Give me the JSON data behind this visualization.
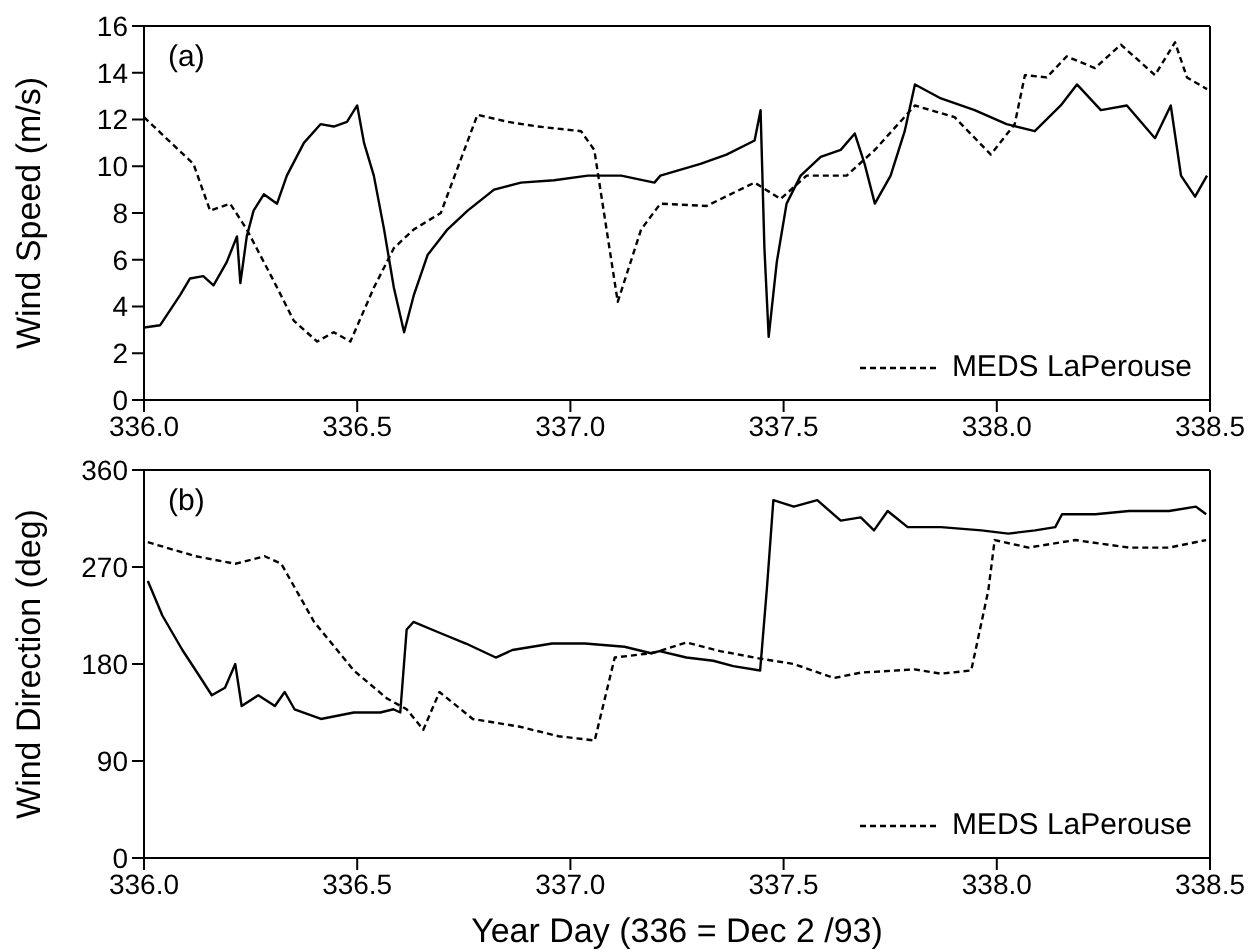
{
  "chart_data": [
    {
      "type": "line",
      "ylabel": "Wind Speed (m/s)",
      "annotations": [
        "(a)"
      ],
      "legend": "bottom right",
      "marker": "none",
      "xlim": [
        336,
        338.5
      ],
      "xticks": [
        {
          "value": 336,
          "label": "336.0"
        },
        {
          "value": 336.5,
          "label": "336.5"
        },
        {
          "value": 337,
          "label": "337.0"
        },
        {
          "value": 337.5,
          "label": "337.5"
        },
        {
          "value": 338,
          "label": "338.0"
        },
        {
          "value": 338.5,
          "label": "338.5"
        }
      ],
      "ylim": [
        0,
        16
      ],
      "yticks": [
        0,
        2,
        4,
        6,
        8,
        10,
        12,
        14,
        16
      ],
      "series": [
        {
          "color": "#000000",
          "line_style": "solid",
          "x": [
            336.0,
            336.038,
            336.085,
            336.108,
            336.139,
            336.163,
            336.194,
            336.218,
            336.226,
            336.241,
            336.257,
            336.281,
            336.312,
            336.335,
            336.375,
            336.414,
            336.445,
            336.476,
            336.5,
            336.516,
            336.539,
            336.563,
            336.586,
            336.61,
            336.633,
            336.665,
            336.712,
            336.759,
            336.821,
            336.884,
            336.962,
            337.041,
            337.119,
            337.197,
            337.211,
            337.305,
            337.366,
            337.432,
            337.446,
            337.455,
            337.465,
            337.484,
            337.507,
            337.54,
            337.587,
            337.634,
            337.667,
            337.69,
            337.714,
            337.751,
            337.784,
            337.808,
            337.869,
            337.948,
            338.023,
            338.089,
            338.15,
            338.188,
            338.244,
            338.305,
            338.371,
            338.408,
            338.432,
            338.465,
            338.493
          ],
          "values": [
            3.1,
            3.2,
            4.5,
            5.2,
            5.3,
            4.9,
            5.9,
            7.0,
            5.0,
            7.0,
            8.1,
            8.8,
            8.4,
            9.6,
            11.0,
            11.8,
            11.7,
            11.9,
            12.6,
            11.0,
            9.6,
            7.3,
            4.8,
            2.9,
            4.5,
            6.2,
            7.3,
            8.1,
            9.0,
            9.3,
            9.4,
            9.6,
            9.6,
            9.3,
            9.6,
            10.1,
            10.5,
            11.1,
            12.4,
            6.5,
            2.7,
            5.9,
            8.4,
            9.6,
            10.4,
            10.7,
            11.4,
            10.1,
            8.4,
            9.6,
            11.5,
            13.5,
            12.9,
            12.4,
            11.8,
            11.5,
            12.6,
            13.5,
            12.4,
            12.6,
            11.2,
            12.6,
            9.6,
            8.7,
            9.6
          ]
        },
        {
          "name": "MEDS LaPerouse",
          "color": "#000000",
          "line_style": "dashed",
          "x": [
            336.0,
            336.116,
            336.155,
            336.202,
            336.241,
            336.304,
            336.351,
            336.406,
            336.445,
            336.484,
            336.539,
            336.586,
            336.633,
            336.696,
            336.782,
            336.853,
            336.923,
            337.025,
            337.056,
            337.111,
            337.166,
            337.211,
            337.319,
            337.432,
            337.493,
            337.554,
            337.648,
            337.714,
            337.808,
            337.901,
            337.986,
            338.042,
            338.066,
            338.117,
            338.164,
            338.23,
            338.291,
            338.371,
            338.418,
            338.446,
            338.493
          ],
          "values": [
            12.1,
            10.1,
            8.1,
            8.4,
            7.3,
            5.1,
            3.4,
            2.5,
            2.9,
            2.5,
            4.8,
            6.5,
            7.3,
            8.0,
            12.2,
            11.9,
            11.7,
            11.5,
            10.7,
            4.2,
            7.3,
            8.4,
            8.3,
            9.3,
            8.6,
            9.6,
            9.6,
            10.7,
            12.6,
            12.1,
            10.5,
            11.8,
            13.9,
            13.8,
            14.7,
            14.2,
            15.2,
            13.9,
            15.3,
            13.8,
            13.3
          ]
        }
      ]
    },
    {
      "type": "line",
      "xlabel": "Year Day (336 = Dec 2 /93)",
      "ylabel": "Wind Direction (deg)",
      "annotations": [
        "(b)"
      ],
      "legend": "bottom right",
      "marker": "none",
      "xlim": [
        336,
        338.5
      ],
      "xticks": [
        {
          "value": 336,
          "label": "336.0"
        },
        {
          "value": 336.5,
          "label": "336.5"
        },
        {
          "value": 337,
          "label": "337.0"
        },
        {
          "value": 337.5,
          "label": "337.5"
        },
        {
          "value": 338,
          "label": "338.0"
        },
        {
          "value": 338.5,
          "label": "338.5"
        }
      ],
      "ylim": [
        0,
        360
      ],
      "yticks": [
        0,
        90,
        180,
        270,
        360
      ],
      "series": [
        {
          "color": "#000000",
          "line_style": "solid",
          "x": [
            336.009,
            336.043,
            336.09,
            336.128,
            336.159,
            336.19,
            336.214,
            336.229,
            336.268,
            336.307,
            336.33,
            336.353,
            336.415,
            336.492,
            336.554,
            336.585,
            336.601,
            336.616,
            336.632,
            336.693,
            336.755,
            336.825,
            336.864,
            336.957,
            337.034,
            337.127,
            337.189,
            337.209,
            337.272,
            337.335,
            337.382,
            337.445,
            337.461,
            337.476,
            337.5,
            337.524,
            337.579,
            337.634,
            337.681,
            337.712,
            337.744,
            337.791,
            337.869,
            337.964,
            338.027,
            338.09,
            338.137,
            338.153,
            338.231,
            338.31,
            338.404,
            338.467,
            338.491
          ],
          "values": [
            257,
            225,
            193,
            170,
            151,
            158,
            180,
            141,
            151,
            141,
            154,
            138,
            129,
            135,
            135,
            138,
            135,
            212,
            219,
            209,
            199,
            186,
            193,
            199,
            199,
            196,
            190,
            192,
            186,
            183,
            178,
            174,
            251,
            332,
            329,
            326,
            332,
            313,
            316,
            304,
            322,
            307,
            307,
            304,
            301,
            304,
            307,
            319,
            319,
            322,
            322,
            326,
            319
          ]
        },
        {
          "name": "MEDS LaPerouse",
          "color": "#000000",
          "line_style": "dashed",
          "x": [
            336.009,
            336.121,
            336.214,
            336.283,
            336.322,
            336.399,
            336.492,
            336.531,
            336.57,
            336.616,
            336.655,
            336.693,
            336.771,
            336.879,
            336.972,
            337.057,
            337.104,
            337.189,
            337.209,
            337.272,
            337.351,
            337.445,
            337.524,
            337.618,
            337.681,
            337.807,
            337.869,
            337.94,
            337.98,
            337.995,
            338.074,
            338.184,
            338.31,
            338.404,
            338.491
          ],
          "values": [
            293,
            280,
            273,
            280,
            273,
            219,
            174,
            161,
            148,
            138,
            119,
            154,
            129,
            122,
            113,
            109,
            186,
            190,
            192,
            200,
            192,
            185,
            180,
            167,
            172,
            175,
            171,
            174,
            248,
            295,
            288,
            295,
            288,
            288,
            295
          ]
        }
      ]
    }
  ]
}
